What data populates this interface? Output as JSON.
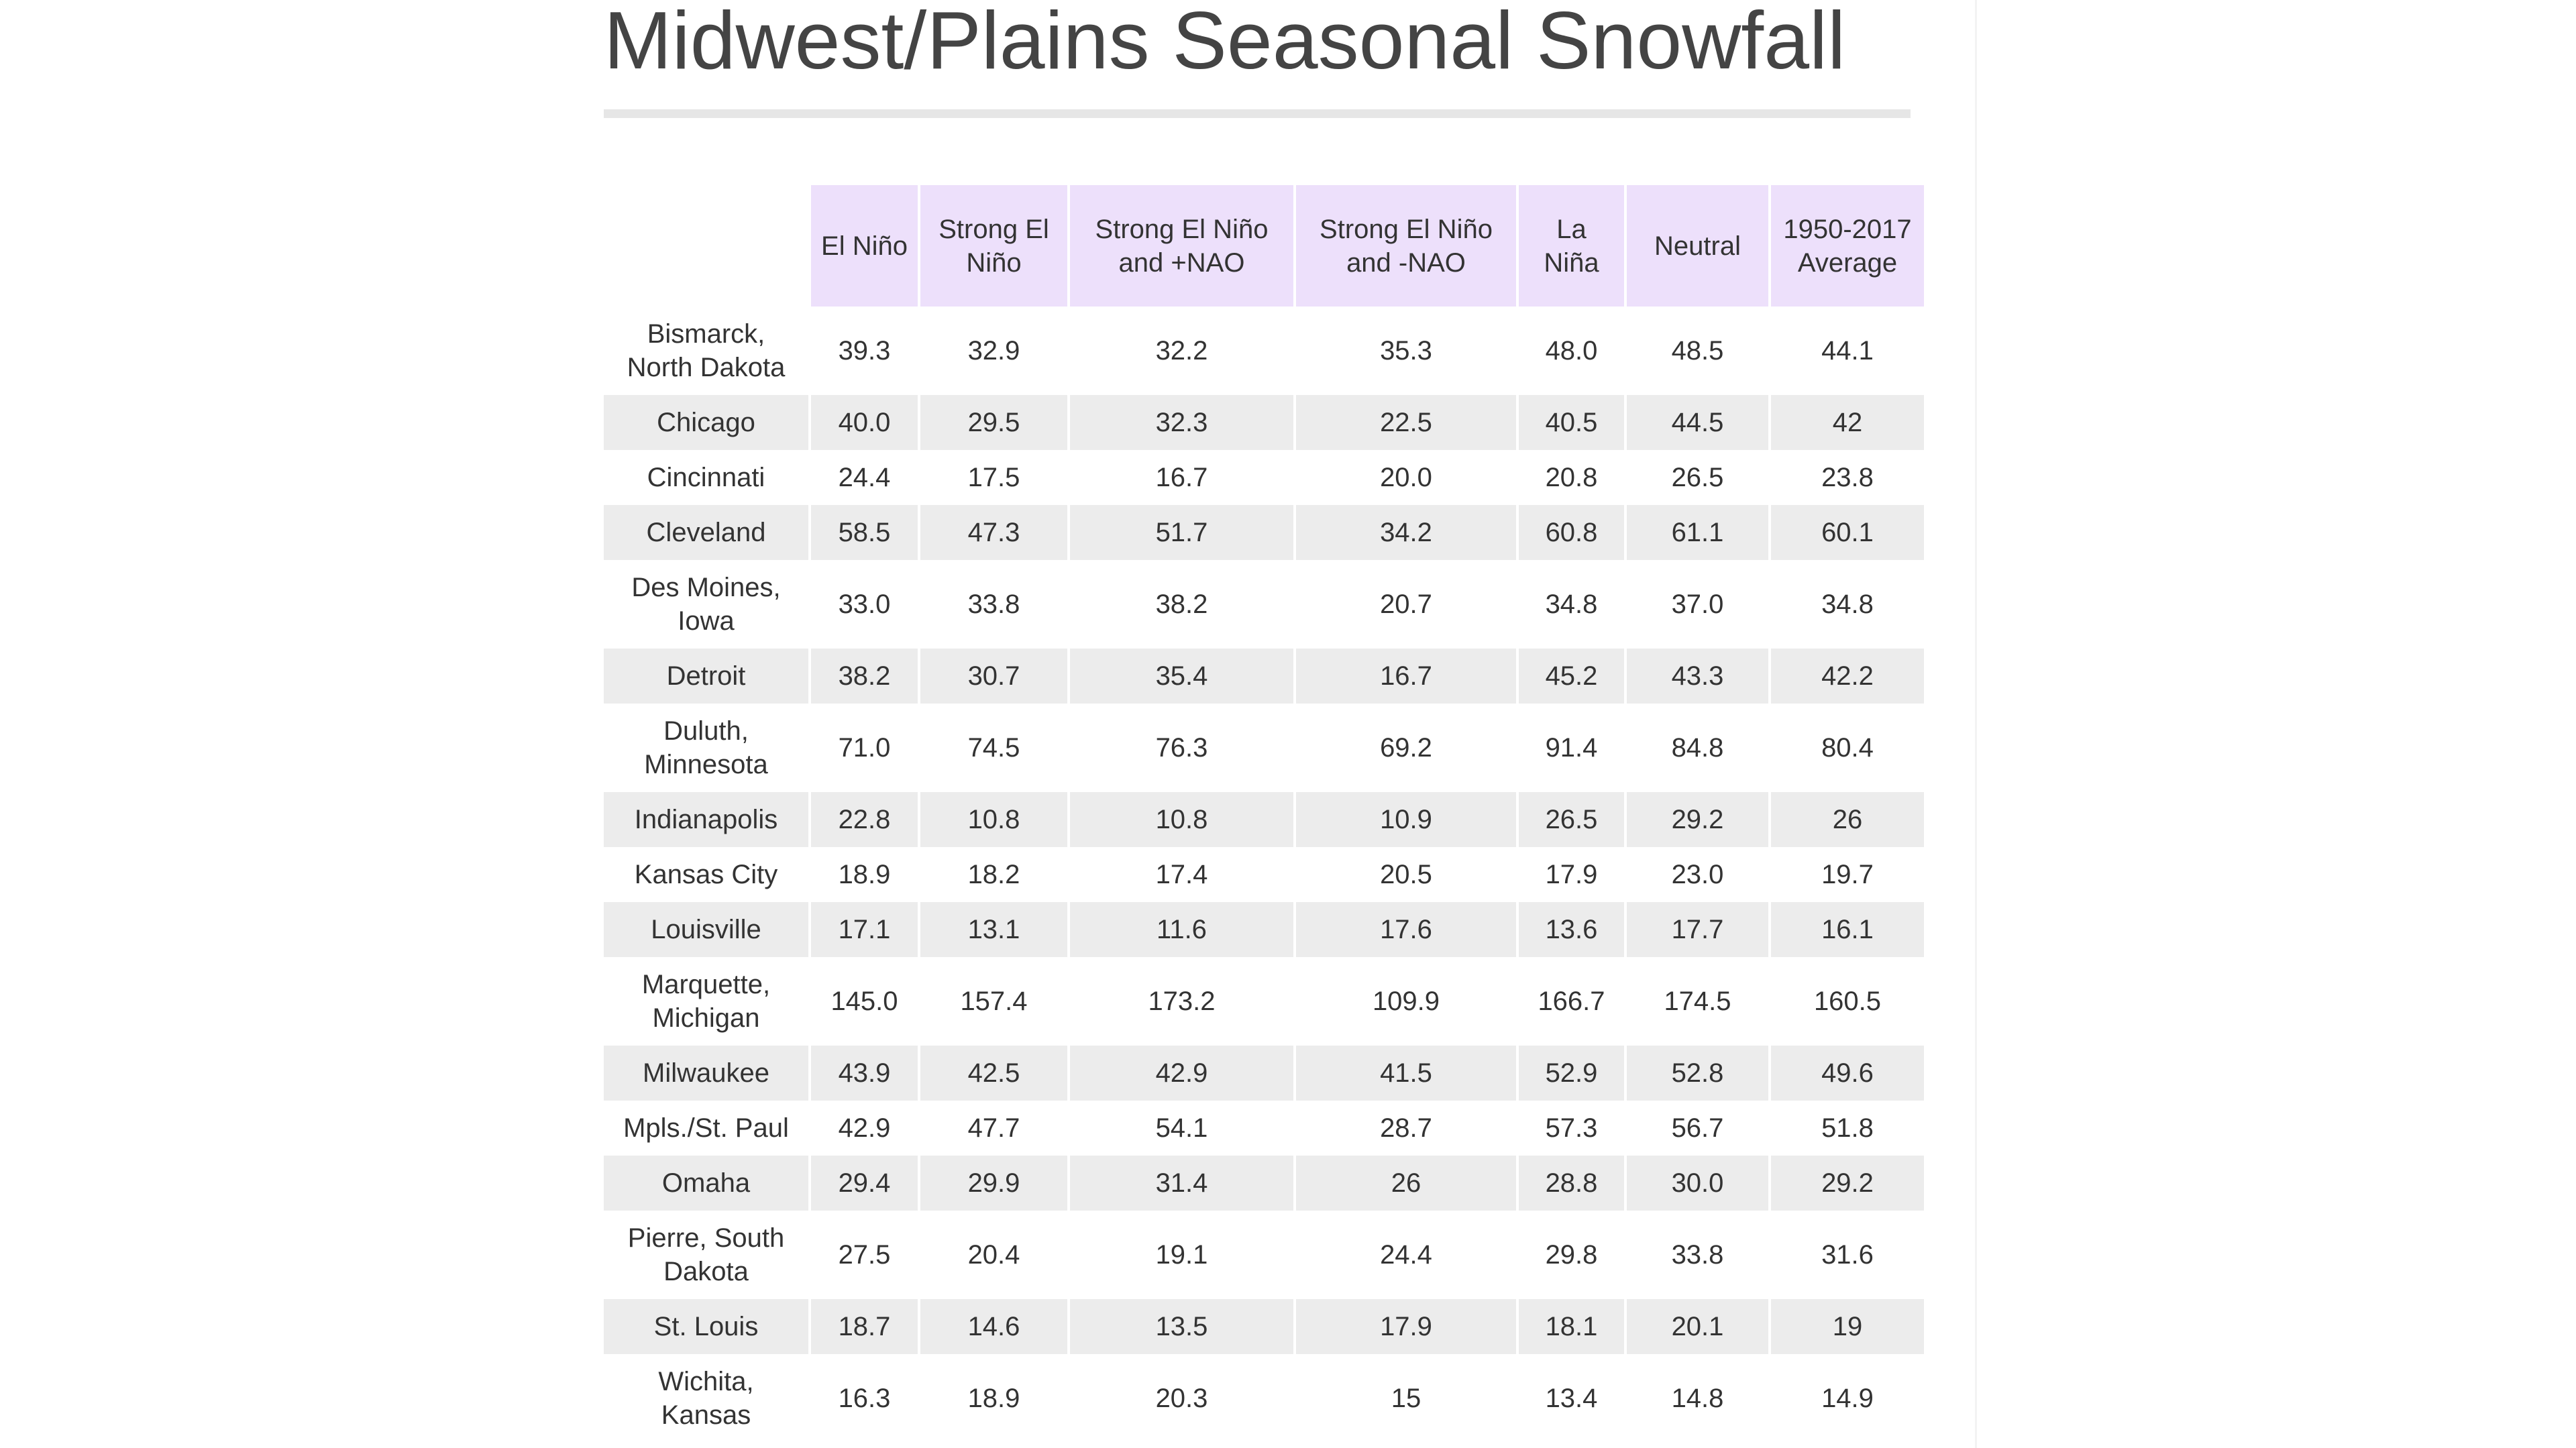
{
  "title": "Midwest/Plains Seasonal Snowfall",
  "table": {
    "columns": [
      "El Niño",
      "Strong El Niño",
      "Strong El Niño and +NAO",
      "Strong El Niño and -NAO",
      "La Niña",
      "Neutral",
      "1950-2017 Average"
    ],
    "rows": [
      [
        "Bismarck, North Dakota",
        "39.3",
        "32.9",
        "32.2",
        "35.3",
        "48.0",
        "48.5",
        "44.1"
      ],
      [
        "Chicago",
        "40.0",
        "29.5",
        "32.3",
        "22.5",
        "40.5",
        "44.5",
        "42"
      ],
      [
        "Cincinnati",
        "24.4",
        "17.5",
        "16.7",
        "20.0",
        "20.8",
        "26.5",
        "23.8"
      ],
      [
        "Cleveland",
        "58.5",
        "47.3",
        "51.7",
        "34.2",
        "60.8",
        "61.1",
        "60.1"
      ],
      [
        "Des Moines, Iowa",
        "33.0",
        "33.8",
        "38.2",
        "20.7",
        "34.8",
        "37.0",
        "34.8"
      ],
      [
        "Detroit",
        "38.2",
        "30.7",
        "35.4",
        "16.7",
        "45.2",
        "43.3",
        "42.2"
      ],
      [
        "Duluth, Minnesota",
        "71.0",
        "74.5",
        "76.3",
        "69.2",
        "91.4",
        "84.8",
        "80.4"
      ],
      [
        "Indianapolis",
        "22.8",
        "10.8",
        "10.8",
        "10.9",
        "26.5",
        "29.2",
        "26"
      ],
      [
        "Kansas City",
        "18.9",
        "18.2",
        "17.4",
        "20.5",
        "17.9",
        "23.0",
        "19.7"
      ],
      [
        "Louisville",
        "17.1",
        "13.1",
        "11.6",
        "17.6",
        "13.6",
        "17.7",
        "16.1"
      ],
      [
        "Marquette, Michigan",
        "145.0",
        "157.4",
        "173.2",
        "109.9",
        "166.7",
        "174.5",
        "160.5"
      ],
      [
        "Milwaukee",
        "43.9",
        "42.5",
        "42.9",
        "41.5",
        "52.9",
        "52.8",
        "49.6"
      ],
      [
        "Mpls./St. Paul",
        "42.9",
        "47.7",
        "54.1",
        "28.7",
        "57.3",
        "56.7",
        "51.8"
      ],
      [
        "Omaha",
        "29.4",
        "29.9",
        "31.4",
        "26",
        "28.8",
        "30.0",
        "29.2"
      ],
      [
        "Pierre, South Dakota",
        "27.5",
        "20.4",
        "19.1",
        "24.4",
        "29.8",
        "33.8",
        "31.6"
      ],
      [
        "St. Louis",
        "18.7",
        "14.6",
        "13.5",
        "17.9",
        "18.1",
        "20.1",
        "19"
      ],
      [
        "Wichita, Kansas",
        "16.3",
        "18.9",
        "20.3",
        "15",
        "13.4",
        "14.8",
        "14.9"
      ]
    ]
  }
}
